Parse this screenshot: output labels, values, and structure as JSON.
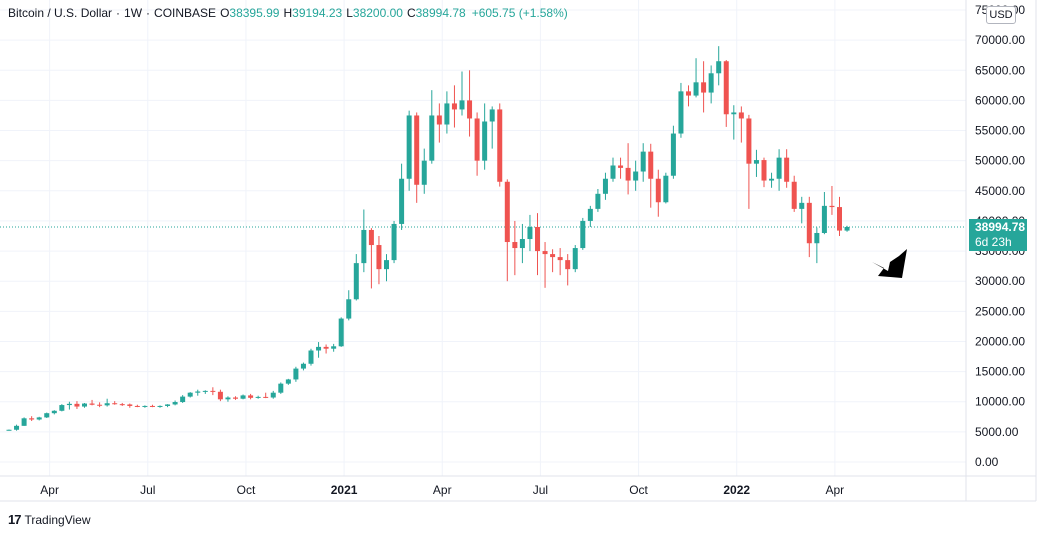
{
  "header": {
    "symbol_title": "Bitcoin / U.S. Dollar",
    "interval": "1W",
    "exchange": "COINBASE",
    "open_label": "O",
    "open": "38395.99",
    "high_label": "H",
    "high": "39194.23",
    "low_label": "L",
    "low": "38200.00",
    "close_label": "C",
    "close": "38994.78",
    "change": "+605.75 (+1.58%)"
  },
  "currency": "USD",
  "last_price": {
    "value": "38994.78",
    "countdown": "6d 23h"
  },
  "brand": {
    "name": "TradingView"
  },
  "colors": {
    "up": "#26a69a",
    "down": "#ef5350",
    "grid": "#f0f3fa",
    "text": "#131722",
    "arrow": "#000000"
  },
  "chart_data": {
    "type": "candlestick",
    "title": "Bitcoin / U.S. Dollar, 1W, COINBASE",
    "ylim": [
      0,
      75000
    ],
    "y_ticks": [
      "0.00",
      "5000.00",
      "10000.00",
      "15000.00",
      "20000.00",
      "25000.00",
      "30000.00",
      "35000.00",
      "40000.00",
      "45000.00",
      "50000.00",
      "55000.00",
      "60000.00",
      "65000.00",
      "70000.00",
      "75000.00"
    ],
    "x_ticks": [
      "Apr",
      "Jul",
      "Oct",
      "2021",
      "Apr",
      "Jul",
      "Oct",
      "2022",
      "Apr"
    ],
    "last_price": 38994.78,
    "candles": [
      [
        5300,
        5400,
        5200,
        5350
      ],
      [
        5350,
        6200,
        5200,
        6000
      ],
      [
        6000,
        7400,
        6000,
        7250
      ],
      [
        7250,
        7600,
        6800,
        7050
      ],
      [
        7050,
        7500,
        6900,
        7400
      ],
      [
        7400,
        8200,
        7300,
        8100
      ],
      [
        8100,
        8600,
        7900,
        8500
      ],
      [
        8500,
        9600,
        8400,
        9450
      ],
      [
        9450,
        10000,
        8700,
        9650
      ],
      [
        9650,
        10100,
        8800,
        9200
      ],
      [
        9200,
        9800,
        9000,
        9700
      ],
      [
        9700,
        10300,
        9400,
        9500
      ],
      [
        9500,
        9900,
        9100,
        9400
      ],
      [
        9400,
        10500,
        9200,
        9750
      ],
      [
        9750,
        10100,
        9500,
        9600
      ],
      [
        9600,
        9800,
        9300,
        9550
      ],
      [
        9550,
        9700,
        9000,
        9300
      ],
      [
        9300,
        9500,
        9100,
        9200
      ],
      [
        9200,
        9400,
        9000,
        9300
      ],
      [
        9300,
        9500,
        9100,
        9250
      ],
      [
        9250,
        9400,
        9000,
        9300
      ],
      [
        9300,
        9600,
        9100,
        9550
      ],
      [
        9550,
        10200,
        9400,
        9950
      ],
      [
        9950,
        11100,
        9800,
        10850
      ],
      [
        10850,
        11600,
        10700,
        11500
      ],
      [
        11500,
        12000,
        11000,
        11700
      ],
      [
        11700,
        11900,
        11300,
        11800
      ],
      [
        11800,
        12400,
        11100,
        11650
      ],
      [
        11650,
        12000,
        10100,
        10400
      ],
      [
        10400,
        10900,
        10000,
        10700
      ],
      [
        10700,
        10900,
        10300,
        10500
      ],
      [
        10500,
        11200,
        10400,
        11050
      ],
      [
        11050,
        11300,
        10400,
        10650
      ],
      [
        10650,
        11000,
        10500,
        10800
      ],
      [
        10800,
        11500,
        10600,
        10700
      ],
      [
        10700,
        11800,
        10500,
        11500
      ],
      [
        11500,
        13200,
        11300,
        13000
      ],
      [
        13000,
        13800,
        12800,
        13700
      ],
      [
        13700,
        15800,
        13300,
        15500
      ],
      [
        15500,
        16500,
        15200,
        16300
      ],
      [
        16300,
        18800,
        16000,
        18500
      ],
      [
        18500,
        19900,
        17300,
        19100
      ],
      [
        19100,
        19500,
        18000,
        18800
      ],
      [
        18800,
        19600,
        18300,
        19200
      ],
      [
        19200,
        24000,
        19100,
        23800
      ],
      [
        23800,
        28500,
        23500,
        27000
      ],
      [
        27000,
        34500,
        26800,
        33000
      ],
      [
        33000,
        41900,
        31500,
        38500
      ],
      [
        38500,
        38800,
        28800,
        36000
      ],
      [
        36000,
        37500,
        29500,
        32000
      ],
      [
        32000,
        34500,
        30000,
        33500
      ],
      [
        33500,
        40000,
        33000,
        39500
      ],
      [
        39500,
        49500,
        38500,
        47000
      ],
      [
        47000,
        58300,
        45000,
        57500
      ],
      [
        57500,
        58000,
        43000,
        46000
      ],
      [
        46000,
        52000,
        44500,
        50000
      ],
      [
        50000,
        61700,
        49500,
        57500
      ],
      [
        57500,
        59500,
        53000,
        56000
      ],
      [
        56000,
        61500,
        54500,
        59500
      ],
      [
        59500,
        62500,
        55500,
        58500
      ],
      [
        58500,
        64800,
        57500,
        60000
      ],
      [
        60000,
        65000,
        54000,
        57000
      ],
      [
        57000,
        58000,
        47500,
        50000
      ],
      [
        50000,
        59500,
        48500,
        56500
      ],
      [
        56500,
        59000,
        52000,
        58500
      ],
      [
        58500,
        59500,
        45700,
        46500
      ],
      [
        46500,
        46900,
        30000,
        36500
      ],
      [
        36500,
        40000,
        31000,
        35500
      ],
      [
        35500,
        39500,
        33000,
        37000
      ],
      [
        37000,
        41000,
        35000,
        39000
      ],
      [
        39000,
        41300,
        31000,
        35000
      ],
      [
        35000,
        36500,
        28900,
        34500
      ],
      [
        34500,
        35300,
        31500,
        34000
      ],
      [
        34000,
        35500,
        31000,
        33500
      ],
      [
        33500,
        34500,
        29300,
        32000
      ],
      [
        32000,
        36000,
        31500,
        35500
      ],
      [
        35500,
        40500,
        35200,
        40000
      ],
      [
        40000,
        42500,
        39000,
        42000
      ],
      [
        42000,
        45300,
        41500,
        44500
      ],
      [
        44500,
        48000,
        43500,
        47000
      ],
      [
        47000,
        50500,
        46500,
        49200
      ],
      [
        49200,
        50500,
        47000,
        48800
      ],
      [
        48800,
        52900,
        44400,
        46700
      ],
      [
        46700,
        50000,
        45000,
        48200
      ],
      [
        48200,
        52900,
        46500,
        51500
      ],
      [
        51500,
        52800,
        42200,
        47000
      ],
      [
        47000,
        48500,
        40700,
        43100
      ],
      [
        43100,
        48000,
        42900,
        47500
      ],
      [
        47500,
        55800,
        47000,
        54500
      ],
      [
        54500,
        62900,
        53800,
        61500
      ],
      [
        61500,
        62500,
        59000,
        60800
      ],
      [
        60800,
        67000,
        60500,
        63000
      ],
      [
        63000,
        66500,
        58000,
        61300
      ],
      [
        61300,
        65800,
        59500,
        64500
      ],
      [
        64500,
        69000,
        62500,
        66500
      ],
      [
        66500,
        66700,
        55600,
        57700
      ],
      [
        57700,
        59200,
        53500,
        58000
      ],
      [
        58000,
        59000,
        53000,
        57000
      ],
      [
        57000,
        57600,
        42000,
        49500
      ],
      [
        49500,
        51800,
        47300,
        50100
      ],
      [
        50100,
        50500,
        45600,
        46700
      ],
      [
        46700,
        48000,
        45500,
        47000
      ],
      [
        47000,
        51900,
        45000,
        50500
      ],
      [
        50500,
        51900,
        45500,
        46500
      ],
      [
        46500,
        47500,
        41500,
        42000
      ],
      [
        42000,
        44000,
        39600,
        43000
      ],
      [
        43000,
        44000,
        34000,
        36300
      ],
      [
        36300,
        38900,
        33000,
        38000
      ],
      [
        38000,
        44800,
        37800,
        42500
      ],
      [
        42500,
        45800,
        41000,
        42300
      ],
      [
        42300,
        44000,
        37500,
        38400
      ],
      [
        38395.99,
        39194.23,
        38200,
        38994.78
      ]
    ]
  }
}
